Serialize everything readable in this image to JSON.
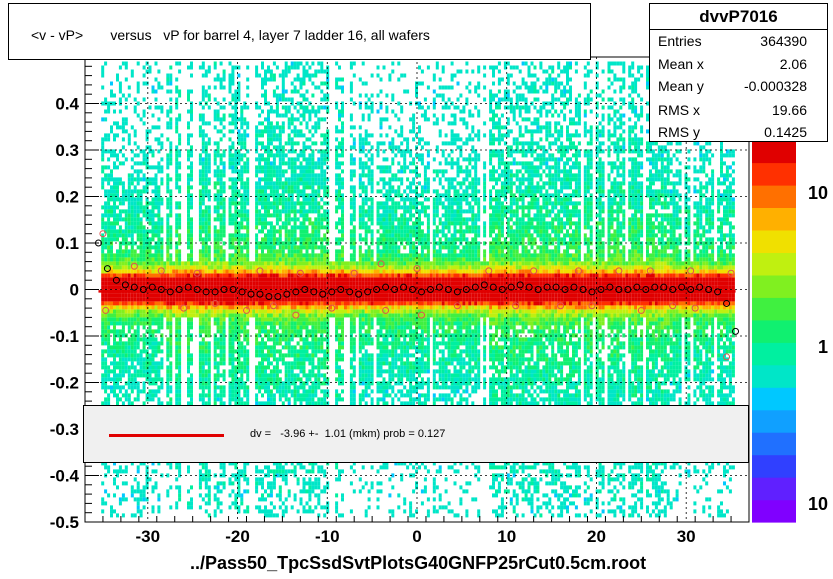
{
  "title": "<v - vP>       versus   vP for barrel 4, layer 7 ladder 16, all wafers",
  "stats": {
    "name": "dvvP7016",
    "rows": [
      {
        "key": "Entries",
        "value": "364390"
      },
      {
        "key": "Mean x",
        "value": "2.06"
      },
      {
        "key": "Mean y",
        "value": "-0.000328"
      },
      {
        "key": "RMS x",
        "value": "19.66"
      },
      {
        "key": "RMS y",
        "value": "0.1425"
      }
    ]
  },
  "fit": {
    "text": "dv =   -3.96 +-  1.01 (mkm) prob = 0.127",
    "line_color": "#e00000"
  },
  "xaxis_title": "../Pass50_TpcSsdSvtPlotsG40GNFP25rCut0.5cm.root",
  "chart_data": {
    "type": "heatmap",
    "title": "<v - vP>       versus   vP for barrel 4, layer 7 ladder 16, all wafers",
    "xlim": [
      -37,
      37
    ],
    "ylim": [
      -0.5,
      0.5
    ],
    "x_ticks": [
      -30,
      -20,
      -10,
      0,
      10,
      20,
      30
    ],
    "y_ticks": [
      -0.5,
      -0.4,
      -0.3,
      -0.2,
      -0.1,
      0,
      0.1,
      0.2,
      0.3,
      0.4
    ],
    "x_tick_labels": [
      "-30",
      "-20",
      "-10",
      "0",
      "10",
      "20",
      "30"
    ],
    "y_tick_labels": [
      "-0.5",
      "-0.4",
      "-0.3",
      "-0.2",
      "-0.1",
      "0",
      "0.1",
      "0.2",
      "0.3",
      "0.4"
    ],
    "z_scale": "log",
    "z_tick_labels": [
      "10",
      "1",
      "10"
    ],
    "grid": true,
    "fit_y": -0.00396,
    "profile": {
      "x": [
        -35.5,
        -34.5,
        -33.5,
        -32.5,
        -31.5,
        -30.5,
        -29.5,
        -28.5,
        -27.5,
        -26.5,
        -25.5,
        -24.5,
        -23.5,
        -22.5,
        -21.5,
        -20.5,
        -19.5,
        -18.5,
        -17.5,
        -16.5,
        -15.5,
        -14.5,
        -13.5,
        -12.5,
        -11.5,
        -10.5,
        -9.5,
        -8.5,
        -7.5,
        -6.5,
        -5.5,
        -4.5,
        -3.5,
        -2.5,
        -1.5,
        -0.5,
        0.5,
        1.5,
        2.5,
        3.5,
        4.5,
        5.5,
        6.5,
        7.5,
        8.5,
        9.5,
        10.5,
        11.5,
        12.5,
        13.5,
        14.5,
        15.5,
        16.5,
        17.5,
        18.5,
        19.5,
        20.5,
        21.5,
        22.5,
        23.5,
        24.5,
        25.5,
        26.5,
        27.5,
        28.5,
        29.5,
        30.5,
        31.5,
        32.5,
        33.5,
        34.5,
        35.5
      ],
      "y": [
        0.1,
        0.045,
        0.02,
        0.01,
        0.005,
        0.0,
        0.005,
        0.0,
        -0.005,
        0.0,
        0.005,
        0.0,
        -0.005,
        -0.005,
        0.0,
        0.0,
        -0.005,
        -0.01,
        -0.01,
        -0.015,
        -0.015,
        -0.01,
        -0.005,
        0.0,
        -0.005,
        -0.01,
        -0.005,
        0.0,
        -0.005,
        -0.01,
        -0.005,
        0.0,
        0.005,
        0.0,
        0.005,
        0.0,
        -0.005,
        0.0,
        0.005,
        0.0,
        -0.005,
        0.0,
        0.005,
        0.01,
        0.005,
        0.0,
        0.005,
        0.01,
        0.005,
        0.0,
        0.005,
        0.005,
        0.0,
        0.005,
        0.0,
        -0.005,
        0.0,
        0.005,
        0.0,
        0.0,
        0.005,
        0.0,
        0.005,
        0.005,
        0.0,
        0.005,
        0.0,
        0.005,
        0.0,
        -0.005,
        -0.03,
        -0.09
      ]
    },
    "outliers": {
      "x": [
        -35.0,
        -34.7,
        -31.5,
        -28.5,
        -26.0,
        -24.5,
        -22.5,
        -19.0,
        -17.5,
        -16.0,
        -13.5,
        -13.0,
        -9.5,
        -7.0,
        -4.0,
        -3.5,
        0.0,
        0.5,
        4.5,
        8.0,
        11.0,
        13.0,
        16.0,
        18.0,
        19.5,
        22.5,
        25.0,
        26.0,
        28.5,
        30.5,
        31.0,
        34.5,
        35.0
      ],
      "y": [
        0.12,
        -0.045,
        0.05,
        0.04,
        -0.04,
        0.035,
        -0.03,
        -0.045,
        0.04,
        -0.035,
        -0.055,
        0.035,
        -0.04,
        0.035,
        0.055,
        -0.045,
        0.045,
        -0.055,
        -0.035,
        0.04,
        -0.035,
        0.04,
        -0.035,
        0.04,
        -0.035,
        0.04,
        -0.045,
        0.04,
        -0.035,
        0.04,
        -0.04,
        -0.145,
        0.035
      ]
    }
  }
}
